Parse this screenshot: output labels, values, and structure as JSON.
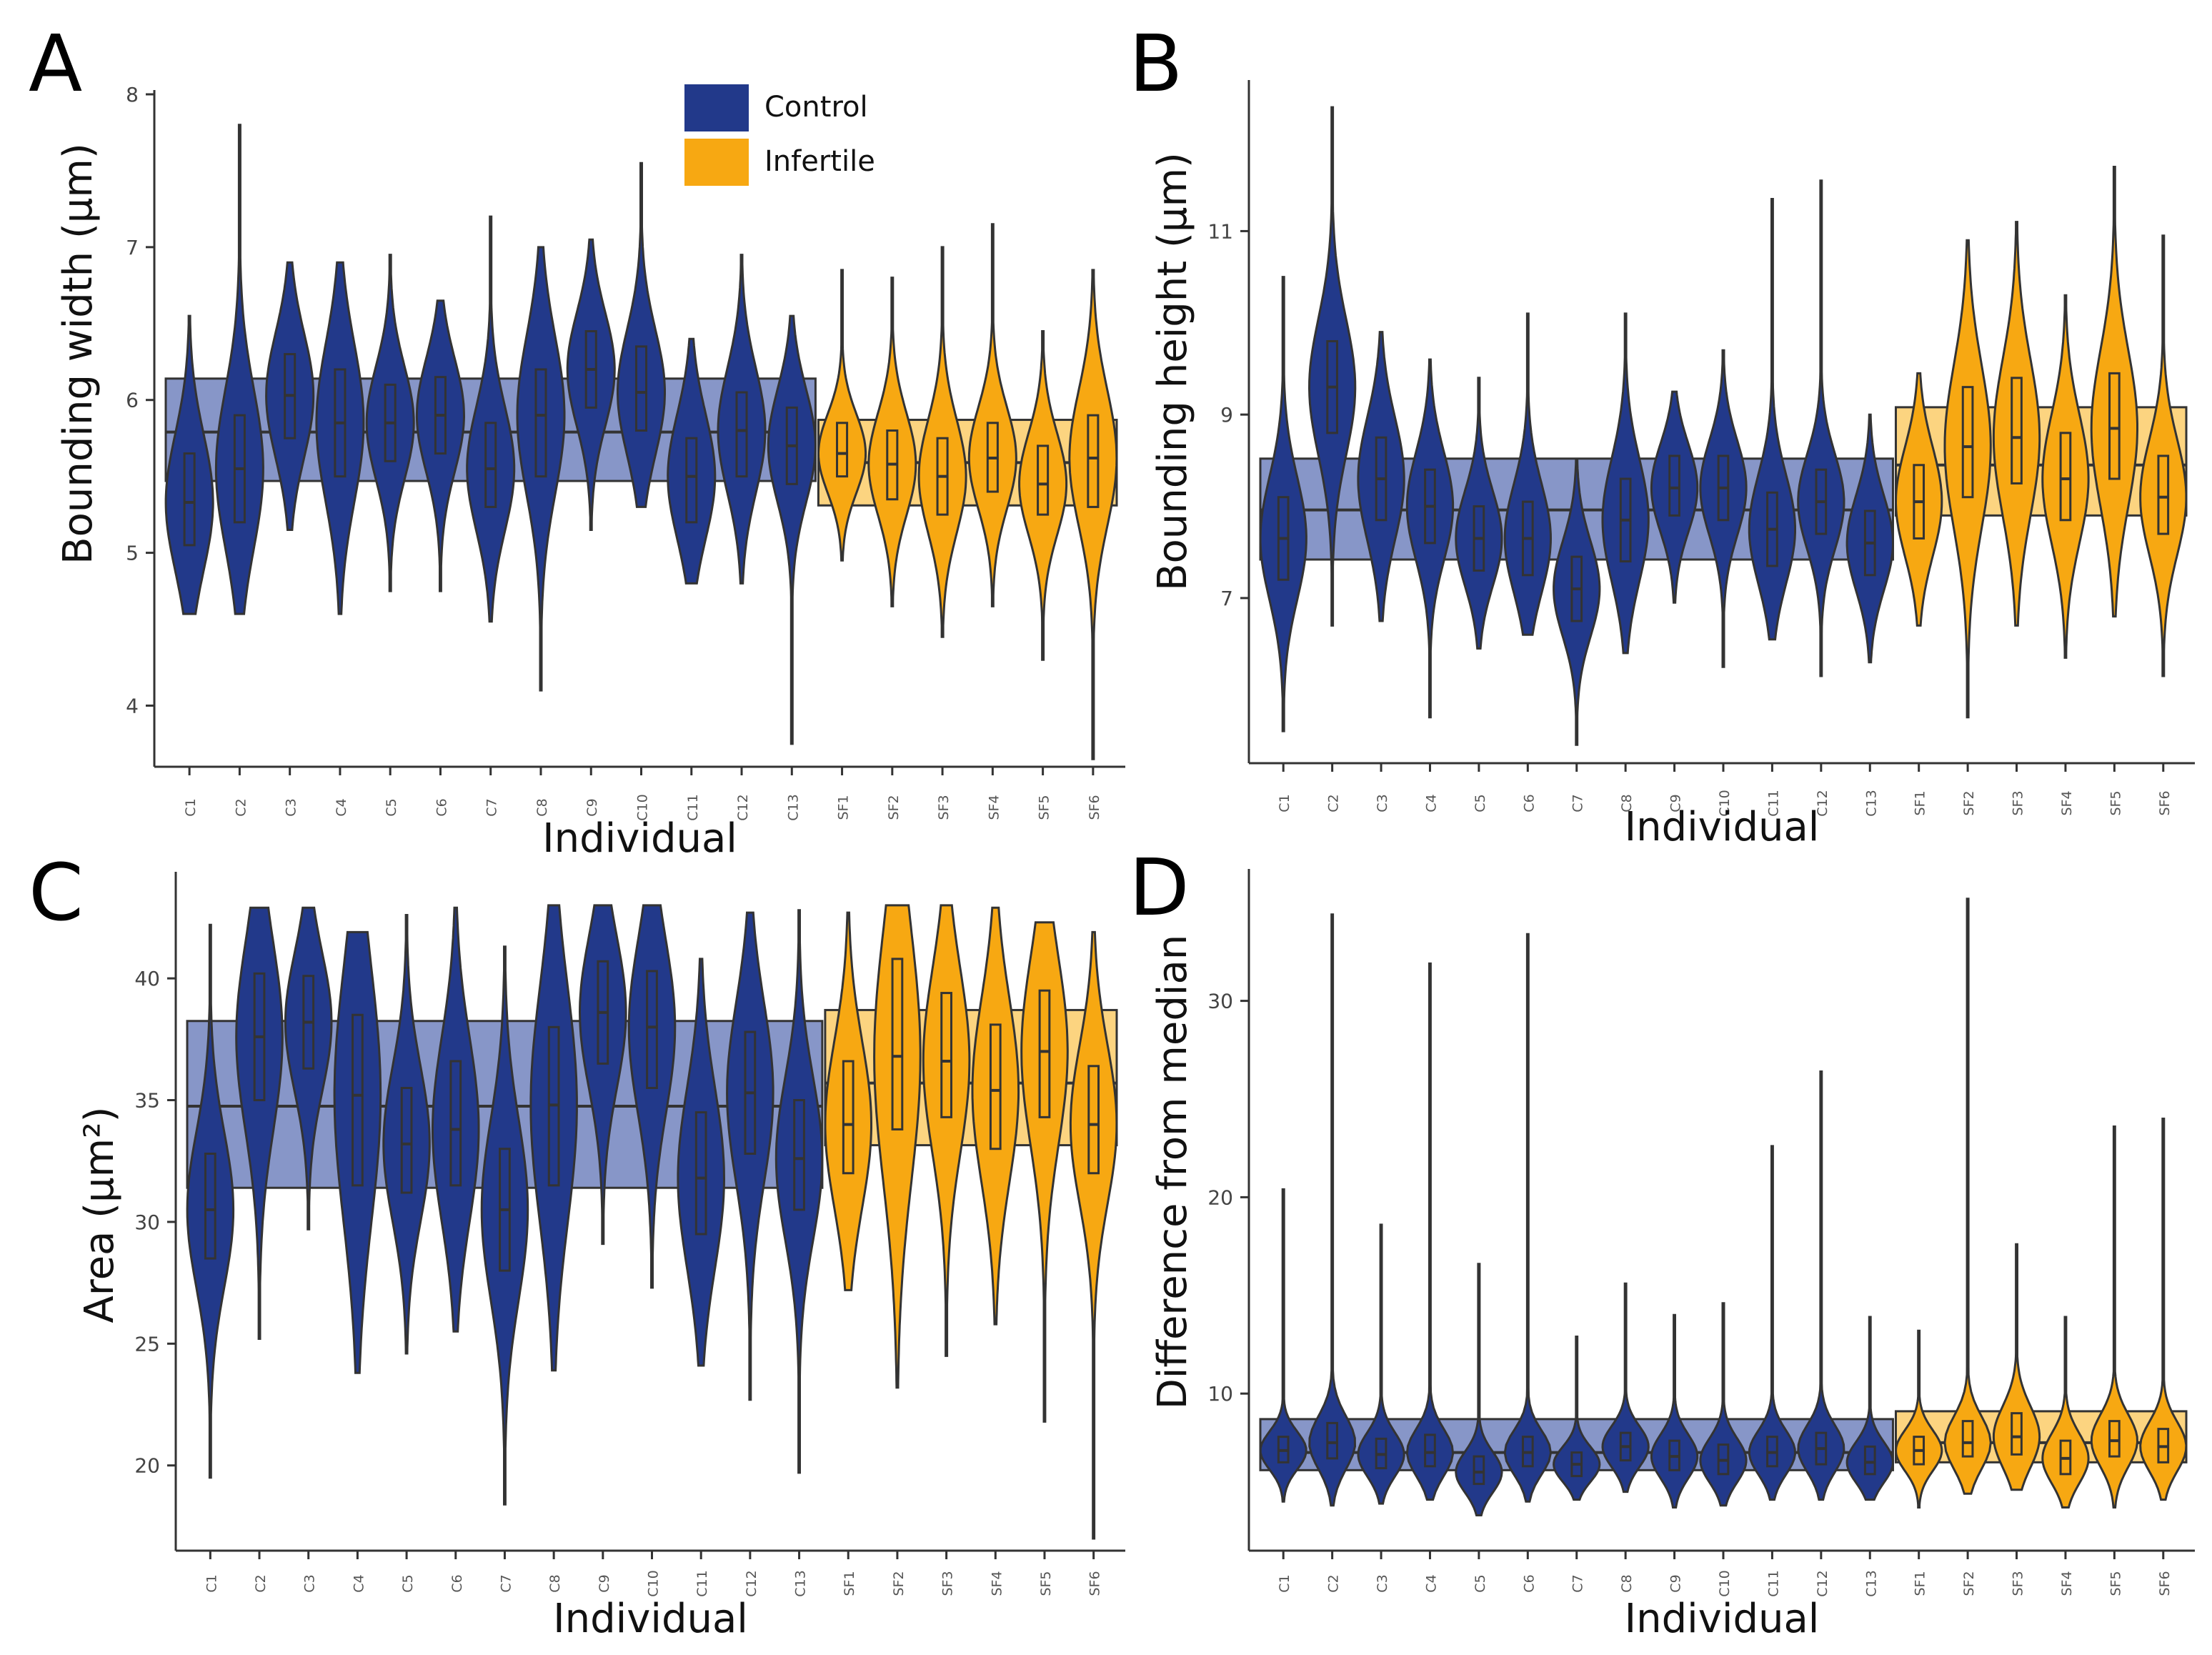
{
  "figure": {
    "individuals": [
      "C1",
      "C2",
      "C3",
      "C4",
      "C5",
      "C6",
      "C7",
      "C8",
      "C9",
      "C10",
      "C11",
      "C12",
      "C13",
      "SF1",
      "SF2",
      "SF3",
      "SF4",
      "SF5",
      "SF6"
    ],
    "group_of_individual": [
      "Control",
      "Control",
      "Control",
      "Control",
      "Control",
      "Control",
      "Control",
      "Control",
      "Control",
      "Control",
      "Control",
      "Control",
      "Control",
      "Infertile",
      "Infertile",
      "Infertile",
      "Infertile",
      "Infertile",
      "Infertile"
    ],
    "colors": {
      "control": "#22398a",
      "infertile": "#f7a812",
      "control_band": "#8796c8",
      "infertile_band": "#fcd480",
      "outline": "#333333",
      "axis": "#333333",
      "text": "#111111"
    },
    "legend": {
      "items": [
        {
          "label": "Control",
          "color": "#22398a"
        },
        {
          "label": "Infertile",
          "color": "#f7a812"
        }
      ]
    }
  },
  "chart_data": [
    {
      "type": "violin",
      "panel_label": "A",
      "title": "",
      "xlabel": "Individual",
      "ylabel": "Bounding width (μm)",
      "ylim": [
        3.6,
        8.0
      ],
      "yticks": [
        4,
        5,
        6,
        7,
        8
      ],
      "legend_position": "top-center",
      "group_bands": {
        "Control": {
          "q1": 5.47,
          "median": 5.79,
          "q3": 6.14
        },
        "Infertile": {
          "q1": 5.31,
          "median": 5.59,
          "q3": 5.87
        }
      },
      "series": [
        {
          "name": "C1",
          "group": "Control",
          "min": 4.6,
          "max": 6.55,
          "q1": 5.05,
          "median": 5.33,
          "q3": 5.65
        },
        {
          "name": "C2",
          "group": "Control",
          "min": 4.6,
          "max": 7.8,
          "q1": 5.2,
          "median": 5.55,
          "q3": 5.9
        },
        {
          "name": "C3",
          "group": "Control",
          "min": 5.15,
          "max": 6.9,
          "q1": 5.75,
          "median": 6.03,
          "q3": 6.3
        },
        {
          "name": "C4",
          "group": "Control",
          "min": 4.6,
          "max": 6.9,
          "q1": 5.5,
          "median": 5.85,
          "q3": 6.2
        },
        {
          "name": "C5",
          "group": "Control",
          "min": 4.75,
          "max": 6.95,
          "q1": 5.6,
          "median": 5.85,
          "q3": 6.1
        },
        {
          "name": "C6",
          "group": "Control",
          "min": 4.75,
          "max": 6.65,
          "q1": 5.65,
          "median": 5.9,
          "q3": 6.15
        },
        {
          "name": "C7",
          "group": "Control",
          "min": 4.55,
          "max": 7.2,
          "q1": 5.3,
          "median": 5.55,
          "q3": 5.85
        },
        {
          "name": "C8",
          "group": "Control",
          "min": 4.1,
          "max": 7.0,
          "q1": 5.5,
          "median": 5.9,
          "q3": 6.2
        },
        {
          "name": "C9",
          "group": "Control",
          "min": 5.15,
          "max": 7.05,
          "q1": 5.95,
          "median": 6.2,
          "q3": 6.45
        },
        {
          "name": "C10",
          "group": "Control",
          "min": 5.3,
          "max": 7.55,
          "q1": 5.8,
          "median": 6.05,
          "q3": 6.35
        },
        {
          "name": "C11",
          "group": "Control",
          "min": 4.8,
          "max": 6.4,
          "q1": 5.2,
          "median": 5.5,
          "q3": 5.75
        },
        {
          "name": "C12",
          "group": "Control",
          "min": 4.8,
          "max": 6.95,
          "q1": 5.5,
          "median": 5.8,
          "q3": 6.05
        },
        {
          "name": "C13",
          "group": "Control",
          "min": 3.75,
          "max": 6.55,
          "q1": 5.45,
          "median": 5.7,
          "q3": 5.95
        },
        {
          "name": "SF1",
          "group": "Infertile",
          "min": 4.95,
          "max": 6.85,
          "q1": 5.5,
          "median": 5.65,
          "q3": 5.85
        },
        {
          "name": "SF2",
          "group": "Infertile",
          "min": 4.65,
          "max": 6.8,
          "q1": 5.35,
          "median": 5.58,
          "q3": 5.8
        },
        {
          "name": "SF3",
          "group": "Infertile",
          "min": 4.45,
          "max": 7.0,
          "q1": 5.25,
          "median": 5.5,
          "q3": 5.75
        },
        {
          "name": "SF4",
          "group": "Infertile",
          "min": 4.65,
          "max": 7.15,
          "q1": 5.4,
          "median": 5.62,
          "q3": 5.85
        },
        {
          "name": "SF5",
          "group": "Infertile",
          "min": 4.3,
          "max": 6.45,
          "q1": 5.25,
          "median": 5.45,
          "q3": 5.7
        },
        {
          "name": "SF6",
          "group": "Infertile",
          "min": 3.65,
          "max": 6.85,
          "q1": 5.3,
          "median": 5.62,
          "q3": 5.9
        }
      ]
    },
    {
      "type": "violin",
      "panel_label": "B",
      "title": "",
      "xlabel": "Individual",
      "ylabel": "Bounding height (μm)",
      "ylim": [
        5.2,
        12.6
      ],
      "yticks": [
        7,
        9,
        11
      ],
      "group_bands": {
        "Control": {
          "q1": 7.42,
          "median": 7.96,
          "q3": 8.52
        },
        "Infertile": {
          "q1": 7.9,
          "median": 8.45,
          "q3": 9.08
        }
      },
      "series": [
        {
          "name": "C1",
          "group": "Control",
          "min": 5.55,
          "max": 10.5,
          "q1": 7.2,
          "median": 7.65,
          "q3": 8.1
        },
        {
          "name": "C2",
          "group": "Control",
          "min": 6.7,
          "max": 12.35,
          "q1": 8.8,
          "median": 9.3,
          "q3": 9.8
        },
        {
          "name": "C3",
          "group": "Control",
          "min": 6.75,
          "max": 9.9,
          "q1": 7.85,
          "median": 8.3,
          "q3": 8.75
        },
        {
          "name": "C4",
          "group": "Control",
          "min": 5.7,
          "max": 9.6,
          "q1": 7.6,
          "median": 8.0,
          "q3": 8.4
        },
        {
          "name": "C5",
          "group": "Control",
          "min": 6.45,
          "max": 9.4,
          "q1": 7.3,
          "median": 7.65,
          "q3": 8.0
        },
        {
          "name": "C6",
          "group": "Control",
          "min": 6.6,
          "max": 10.1,
          "q1": 7.25,
          "median": 7.65,
          "q3": 8.05
        },
        {
          "name": "C7",
          "group": "Control",
          "min": 5.4,
          "max": 8.5,
          "q1": 6.75,
          "median": 7.1,
          "q3": 7.45
        },
        {
          "name": "C8",
          "group": "Control",
          "min": 6.4,
          "max": 10.1,
          "q1": 7.4,
          "median": 7.85,
          "q3": 8.3
        },
        {
          "name": "C9",
          "group": "Control",
          "min": 6.95,
          "max": 9.25,
          "q1": 7.9,
          "median": 8.2,
          "q3": 8.55
        },
        {
          "name": "C10",
          "group": "Control",
          "min": 6.25,
          "max": 9.7,
          "q1": 7.85,
          "median": 8.2,
          "q3": 8.55
        },
        {
          "name": "C11",
          "group": "Control",
          "min": 6.55,
          "max": 11.35,
          "q1": 7.35,
          "median": 7.75,
          "q3": 8.15
        },
        {
          "name": "C12",
          "group": "Control",
          "min": 6.15,
          "max": 11.55,
          "q1": 7.7,
          "median": 8.05,
          "q3": 8.4
        },
        {
          "name": "C13",
          "group": "Control",
          "min": 6.3,
          "max": 9.0,
          "q1": 7.25,
          "median": 7.6,
          "q3": 7.95
        },
        {
          "name": "SF1",
          "group": "Infertile",
          "min": 6.7,
          "max": 9.45,
          "q1": 7.65,
          "median": 8.05,
          "q3": 8.45
        },
        {
          "name": "SF2",
          "group": "Infertile",
          "min": 5.7,
          "max": 10.9,
          "q1": 8.1,
          "median": 8.65,
          "q3": 9.3
        },
        {
          "name": "SF3",
          "group": "Infertile",
          "min": 6.7,
          "max": 11.1,
          "q1": 8.25,
          "median": 8.75,
          "q3": 9.4
        },
        {
          "name": "SF4",
          "group": "Infertile",
          "min": 6.35,
          "max": 10.3,
          "q1": 7.85,
          "median": 8.3,
          "q3": 8.8
        },
        {
          "name": "SF5",
          "group": "Infertile",
          "min": 6.8,
          "max": 11.7,
          "q1": 8.3,
          "median": 8.85,
          "q3": 9.45
        },
        {
          "name": "SF6",
          "group": "Infertile",
          "min": 6.15,
          "max": 10.95,
          "q1": 7.7,
          "median": 8.1,
          "q3": 8.55
        }
      ]
    },
    {
      "type": "violin",
      "panel_label": "C",
      "title": "",
      "xlabel": "Individual",
      "ylabel": "Area (μm²)",
      "ylim": [
        16.5,
        44.2
      ],
      "yticks": [
        20,
        25,
        30,
        35,
        40
      ],
      "group_bands": {
        "Control": {
          "q1": 31.4,
          "median": 34.75,
          "q3": 38.25
        },
        "Infertile": {
          "q1": 33.15,
          "median": 35.7,
          "q3": 38.7
        }
      },
      "series": [
        {
          "name": "C1",
          "group": "Control",
          "min": 19.5,
          "max": 42.2,
          "q1": 28.5,
          "median": 30.5,
          "q3": 32.8
        },
        {
          "name": "C2",
          "group": "Control",
          "min": 25.2,
          "max": 42.9,
          "q1": 35.0,
          "median": 37.6,
          "q3": 40.2
        },
        {
          "name": "C3",
          "group": "Control",
          "min": 29.7,
          "max": 42.9,
          "q1": 36.3,
          "median": 38.2,
          "q3": 40.1
        },
        {
          "name": "C4",
          "group": "Control",
          "min": 23.8,
          "max": 41.9,
          "q1": 31.5,
          "median": 35.2,
          "q3": 38.5
        },
        {
          "name": "C5",
          "group": "Control",
          "min": 24.6,
          "max": 42.6,
          "q1": 31.2,
          "median": 33.2,
          "q3": 35.5
        },
        {
          "name": "C6",
          "group": "Control",
          "min": 25.5,
          "max": 42.9,
          "q1": 31.5,
          "median": 33.8,
          "q3": 36.6
        },
        {
          "name": "C7",
          "group": "Control",
          "min": 18.4,
          "max": 41.3,
          "q1": 28.0,
          "median": 30.5,
          "q3": 33.0
        },
        {
          "name": "C8",
          "group": "Control",
          "min": 23.9,
          "max": 43.0,
          "q1": 31.5,
          "median": 34.8,
          "q3": 38.0
        },
        {
          "name": "C9",
          "group": "Control",
          "min": 29.1,
          "max": 43.0,
          "q1": 36.5,
          "median": 38.6,
          "q3": 40.7
        },
        {
          "name": "C10",
          "group": "Control",
          "min": 27.3,
          "max": 43.0,
          "q1": 35.5,
          "median": 38.0,
          "q3": 40.3
        },
        {
          "name": "C11",
          "group": "Control",
          "min": 24.1,
          "max": 40.8,
          "q1": 29.5,
          "median": 31.8,
          "q3": 34.5
        },
        {
          "name": "C12",
          "group": "Control",
          "min": 22.7,
          "max": 42.7,
          "q1": 32.8,
          "median": 35.3,
          "q3": 37.8
        },
        {
          "name": "C13",
          "group": "Control",
          "min": 19.7,
          "max": 42.8,
          "q1": 30.5,
          "median": 32.6,
          "q3": 35.0
        },
        {
          "name": "SF1",
          "group": "Infertile",
          "min": 27.2,
          "max": 42.7,
          "q1": 32.0,
          "median": 34.0,
          "q3": 36.6
        },
        {
          "name": "SF2",
          "group": "Infertile",
          "min": 23.2,
          "max": 43.0,
          "q1": 33.8,
          "median": 36.8,
          "q3": 40.8
        },
        {
          "name": "SF3",
          "group": "Infertile",
          "min": 24.5,
          "max": 43.0,
          "q1": 34.3,
          "median": 36.6,
          "q3": 39.4
        },
        {
          "name": "SF4",
          "group": "Infertile",
          "min": 25.8,
          "max": 42.9,
          "q1": 33.0,
          "median": 35.4,
          "q3": 38.1
        },
        {
          "name": "SF5",
          "group": "Infertile",
          "min": 21.8,
          "max": 42.3,
          "q1": 34.3,
          "median": 37.0,
          "q3": 39.5
        },
        {
          "name": "SF6",
          "group": "Infertile",
          "min": 17.0,
          "max": 41.9,
          "q1": 32.0,
          "median": 34.0,
          "q3": 36.4
        }
      ]
    },
    {
      "type": "violin",
      "panel_label": "D",
      "title": "",
      "xlabel": "Individual",
      "ylabel": "Difference from median",
      "ylim": [
        2.0,
        36.5
      ],
      "yticks": [
        10,
        20,
        30
      ],
      "group_bands": {
        "Control": {
          "q1": 6.1,
          "median": 7.0,
          "q3": 8.7
        },
        "Infertile": {
          "q1": 6.5,
          "median": 7.5,
          "q3": 9.1
        }
      },
      "series": [
        {
          "name": "C1",
          "group": "Control",
          "min": 4.5,
          "max": 20.4,
          "q1": 6.5,
          "median": 7.1,
          "q3": 7.8
        },
        {
          "name": "C2",
          "group": "Control",
          "min": 4.3,
          "max": 34.4,
          "q1": 6.7,
          "median": 7.5,
          "q3": 8.5
        },
        {
          "name": "C3",
          "group": "Control",
          "min": 4.4,
          "max": 18.6,
          "q1": 6.2,
          "median": 6.9,
          "q3": 7.7
        },
        {
          "name": "C4",
          "group": "Control",
          "min": 4.6,
          "max": 31.9,
          "q1": 6.3,
          "median": 7.0,
          "q3": 7.9
        },
        {
          "name": "C5",
          "group": "Control",
          "min": 3.8,
          "max": 16.6,
          "q1": 5.4,
          "median": 6.0,
          "q3": 6.8
        },
        {
          "name": "C6",
          "group": "Control",
          "min": 4.5,
          "max": 33.4,
          "q1": 6.3,
          "median": 7.0,
          "q3": 7.8
        },
        {
          "name": "C7",
          "group": "Control",
          "min": 4.6,
          "max": 12.9,
          "q1": 5.8,
          "median": 6.4,
          "q3": 7.0
        },
        {
          "name": "C8",
          "group": "Control",
          "min": 5.0,
          "max": 15.6,
          "q1": 6.6,
          "median": 7.3,
          "q3": 8.0
        },
        {
          "name": "C9",
          "group": "Control",
          "min": 4.2,
          "max": 14.0,
          "q1": 6.1,
          "median": 6.8,
          "q3": 7.6
        },
        {
          "name": "C10",
          "group": "Control",
          "min": 4.3,
          "max": 14.6,
          "q1": 5.9,
          "median": 6.6,
          "q3": 7.4
        },
        {
          "name": "C11",
          "group": "Control",
          "min": 4.6,
          "max": 22.6,
          "q1": 6.3,
          "median": 7.0,
          "q3": 7.8
        },
        {
          "name": "C12",
          "group": "Control",
          "min": 4.6,
          "max": 26.4,
          "q1": 6.4,
          "median": 7.2,
          "q3": 8.0
        },
        {
          "name": "C13",
          "group": "Control",
          "min": 4.6,
          "max": 13.9,
          "q1": 5.9,
          "median": 6.5,
          "q3": 7.3
        },
        {
          "name": "SF1",
          "group": "Infertile",
          "min": 4.2,
          "max": 13.2,
          "q1": 6.4,
          "median": 7.1,
          "q3": 7.8
        },
        {
          "name": "SF2",
          "group": "Infertile",
          "min": 4.9,
          "max": 35.2,
          "q1": 6.8,
          "median": 7.5,
          "q3": 8.6
        },
        {
          "name": "SF3",
          "group": "Infertile",
          "min": 5.1,
          "max": 17.6,
          "q1": 6.9,
          "median": 7.8,
          "q3": 9.0
        },
        {
          "name": "SF4",
          "group": "Infertile",
          "min": 4.2,
          "max": 13.9,
          "q1": 5.9,
          "median": 6.7,
          "q3": 7.6
        },
        {
          "name": "SF5",
          "group": "Infertile",
          "min": 4.2,
          "max": 23.6,
          "q1": 6.8,
          "median": 7.6,
          "q3": 8.6
        },
        {
          "name": "SF6",
          "group": "Infertile",
          "min": 4.6,
          "max": 24.0,
          "q1": 6.5,
          "median": 7.3,
          "q3": 8.2
        }
      ]
    }
  ]
}
